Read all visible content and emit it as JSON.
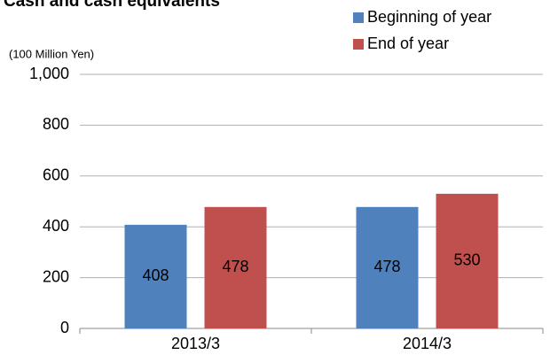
{
  "chart_data": {
    "type": "bar",
    "title": "Cash and cash equivalents",
    "y_label": "(100 Million Yen)",
    "categories": [
      "2013/3",
      "2014/3"
    ],
    "series": [
      {
        "name": "Beginning of year",
        "color": "#4f81bd",
        "values": [
          408,
          478
        ]
      },
      {
        "name": "End of year",
        "color": "#c0504d",
        "values": [
          478,
          530
        ]
      }
    ],
    "ylim": [
      0,
      1000
    ],
    "yticks": [
      0,
      200,
      400,
      600,
      800,
      {
        "value": 1000,
        "label": "1,000"
      }
    ],
    "grid": true,
    "legend": "top-right"
  }
}
